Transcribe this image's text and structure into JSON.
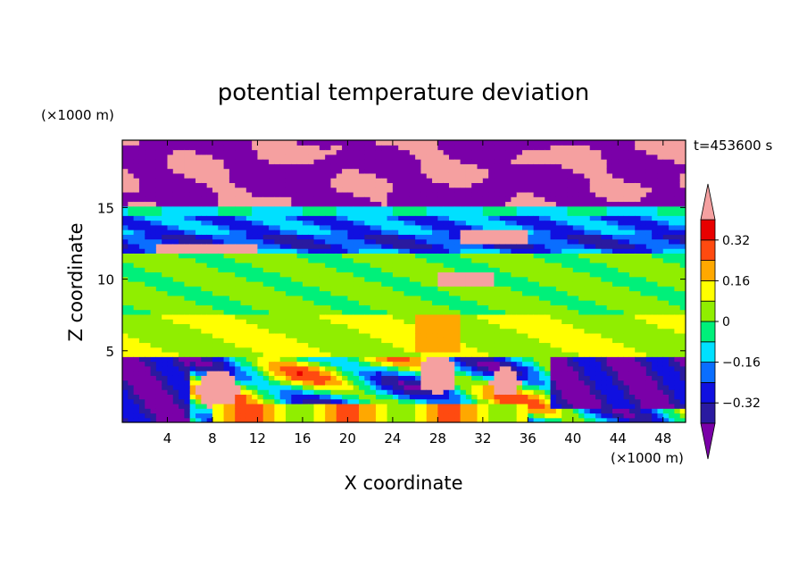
{
  "chart_data": {
    "type": "heatmap",
    "title": "potential temperature deviation",
    "xlabel": "X coordinate",
    "ylabel": "Z coordinate",
    "x_unit": "(×1000 m)",
    "y_unit": "(×1000 m)",
    "time_label": "t=453600 s",
    "xlim": [
      0,
      50
    ],
    "ylim": [
      0,
      19.7
    ],
    "x_ticks": [
      "4",
      "8",
      "12",
      "16",
      "20",
      "24",
      "28",
      "32",
      "36",
      "40",
      "44",
      "48"
    ],
    "y_ticks": [
      "5",
      "10",
      "15"
    ],
    "colorbar": {
      "labels": [
        "0.32",
        "0.16",
        "0",
        "−0.16",
        "−0.32"
      ],
      "levels": [
        -0.4,
        -0.32,
        -0.24,
        -0.16,
        -0.08,
        0,
        0.08,
        0.16,
        0.24,
        0.32,
        0.4
      ],
      "colors": [
        "#7a00a8",
        "#2a1aa0",
        "#1010e0",
        "#0a6eff",
        "#00e0ff",
        "#00f07a",
        "#90ee00",
        "#ffff00",
        "#ffa800",
        "#ff4a10",
        "#e80000",
        "#f5a0a0"
      ],
      "extend": "both"
    },
    "field_bands": [
      {
        "z_from": 15.2,
        "z_to": 19.7,
        "dominant": -0.4,
        "secondary": 0.4
      },
      {
        "z_from": 14.5,
        "z_to": 15.2,
        "dominant": -0.12
      },
      {
        "z_from": 11.8,
        "z_to": 14.5,
        "dominant": -0.2
      },
      {
        "z_from": 7.5,
        "z_to": 11.8,
        "dominant": 0.02
      },
      {
        "z_from": 4.7,
        "z_to": 7.5,
        "dominant": 0.06
      },
      {
        "z_from": 0,
        "z_to": 4.7,
        "dominant": -0.05
      }
    ]
  }
}
